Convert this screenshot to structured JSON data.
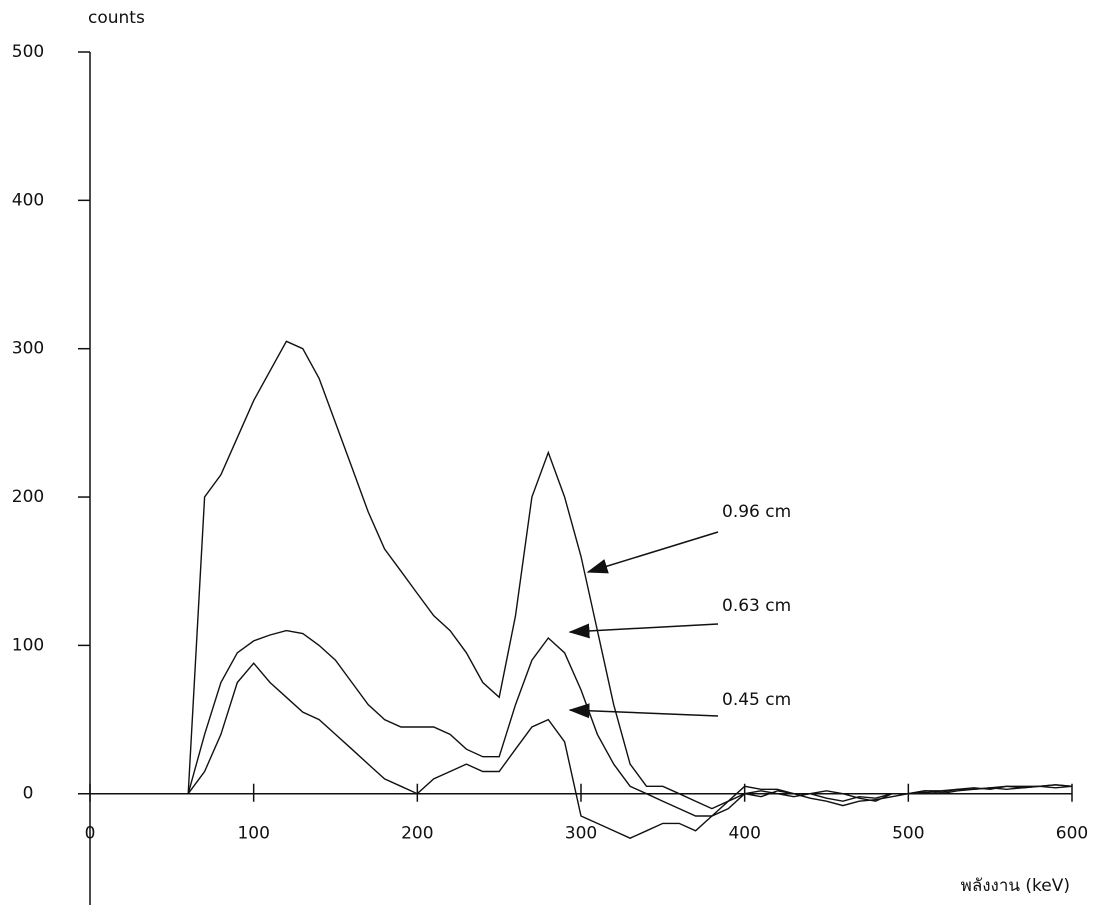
{
  "chart_data": {
    "type": "line",
    "y_label": "counts",
    "x_label": "พลังงาน (keV)",
    "xlim": [
      0,
      600
    ],
    "xticks": [
      0,
      100,
      200,
      300,
      400,
      500,
      600
    ],
    "ylim": [
      -75,
      500
    ],
    "yticks": [
      0,
      100,
      200,
      300,
      400,
      500
    ],
    "grid": false,
    "x": [
      60,
      70,
      80,
      90,
      100,
      110,
      120,
      130,
      140,
      150,
      160,
      170,
      180,
      190,
      200,
      210,
      220,
      230,
      240,
      250,
      260,
      270,
      280,
      290,
      300,
      310,
      320,
      330,
      340,
      350,
      360,
      370,
      380,
      390,
      400,
      410,
      420,
      430,
      440,
      450,
      460,
      470,
      480,
      490,
      500,
      510,
      520,
      530,
      540,
      550,
      560,
      570,
      580,
      590,
      600
    ],
    "series": [
      {
        "name": "0.96 cm",
        "color": "#111111",
        "values": [
          0,
          200,
          215,
          240,
          265,
          285,
          305,
          300,
          280,
          250,
          220,
          190,
          165,
          150,
          135,
          120,
          110,
          95,
          75,
          65,
          120,
          200,
          230,
          200,
          160,
          110,
          60,
          20,
          5,
          5,
          0,
          -5,
          -10,
          -5,
          5,
          3,
          3,
          0,
          0,
          2,
          0,
          -3,
          -5,
          0,
          0,
          2,
          2,
          3,
          3,
          4,
          5,
          5,
          5,
          6,
          5
        ]
      },
      {
        "name": "0.63 cm",
        "color": "#111111",
        "values": [
          0,
          40,
          75,
          95,
          103,
          107,
          110,
          108,
          100,
          90,
          75,
          60,
          50,
          45,
          45,
          45,
          40,
          30,
          25,
          25,
          60,
          90,
          105,
          95,
          70,
          40,
          20,
          5,
          0,
          -5,
          -10,
          -15,
          -15,
          -10,
          0,
          2,
          0,
          -2,
          0,
          -3,
          -5,
          -2,
          -3,
          0,
          0,
          2,
          1,
          3,
          4,
          3,
          5,
          4,
          5,
          6,
          5
        ]
      },
      {
        "name": "0.45 cm",
        "color": "#111111",
        "values": [
          0,
          15,
          40,
          75,
          88,
          75,
          65,
          55,
          50,
          40,
          30,
          20,
          10,
          5,
          0,
          10,
          15,
          20,
          15,
          15,
          30,
          45,
          50,
          35,
          -15,
          -20,
          -25,
          -30,
          -25,
          -20,
          -20,
          -25,
          -15,
          -5,
          0,
          -2,
          2,
          0,
          -3,
          -5,
          -8,
          -5,
          -4,
          -2,
          0,
          1,
          0,
          2,
          3,
          4,
          3,
          4,
          5,
          4,
          5
        ]
      }
    ]
  }
}
